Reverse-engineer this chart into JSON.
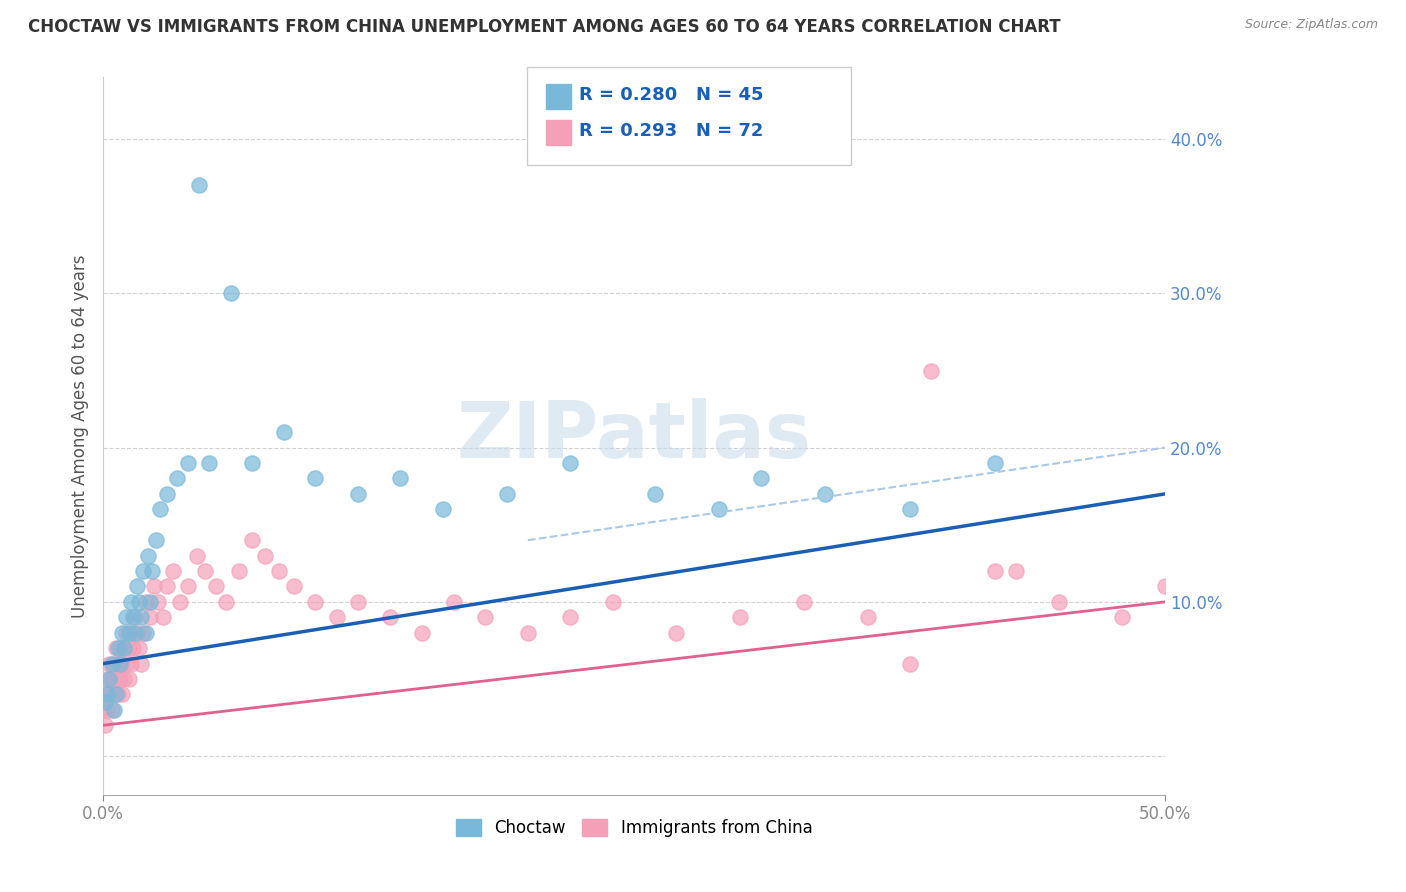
{
  "title": "CHOCTAW VS IMMIGRANTS FROM CHINA UNEMPLOYMENT AMONG AGES 60 TO 64 YEARS CORRELATION CHART",
  "source": "Source: ZipAtlas.com",
  "ylabel": "Unemployment Among Ages 60 to 64 years",
  "choctaw_label": "Choctaw",
  "china_label": "Immigrants from China",
  "legend_r1": "R = 0.280",
  "legend_n1": "N = 45",
  "legend_r2": "R = 0.293",
  "legend_n2": "N = 72",
  "choctaw_color": "#7ab8d9",
  "china_color": "#f4a0b8",
  "choctaw_trend_color": "#1a5fb4",
  "china_trend_color": "#e06090",
  "china_dashed_color": "#aac8e8",
  "watermark_color": "#ccdcec",
  "xlim": [
    0.0,
    0.5
  ],
  "ylim": [
    -0.025,
    0.44
  ],
  "choctaw_x": [
    0.001,
    0.002,
    0.003,
    0.004,
    0.005,
    0.006,
    0.007,
    0.008,
    0.009,
    0.01,
    0.011,
    0.012,
    0.013,
    0.014,
    0.015,
    0.016,
    0.017,
    0.018,
    0.019,
    0.02,
    0.021,
    0.022,
    0.023,
    0.025,
    0.027,
    0.03,
    0.035,
    0.04,
    0.045,
    0.05,
    0.06,
    0.07,
    0.085,
    0.1,
    0.12,
    0.14,
    0.16,
    0.19,
    0.22,
    0.26,
    0.29,
    0.31,
    0.34,
    0.38,
    0.42
  ],
  "choctaw_y": [
    0.035,
    0.04,
    0.05,
    0.06,
    0.03,
    0.04,
    0.07,
    0.06,
    0.08,
    0.07,
    0.09,
    0.08,
    0.1,
    0.09,
    0.08,
    0.11,
    0.1,
    0.09,
    0.12,
    0.08,
    0.13,
    0.1,
    0.12,
    0.14,
    0.16,
    0.17,
    0.18,
    0.19,
    0.37,
    0.19,
    0.3,
    0.19,
    0.21,
    0.18,
    0.17,
    0.18,
    0.16,
    0.17,
    0.19,
    0.17,
    0.16,
    0.18,
    0.17,
    0.16,
    0.19
  ],
  "china_x": [
    0.0,
    0.001,
    0.001,
    0.002,
    0.002,
    0.003,
    0.003,
    0.004,
    0.004,
    0.005,
    0.005,
    0.006,
    0.006,
    0.007,
    0.007,
    0.008,
    0.008,
    0.009,
    0.009,
    0.01,
    0.01,
    0.011,
    0.011,
    0.012,
    0.012,
    0.013,
    0.013,
    0.014,
    0.015,
    0.016,
    0.017,
    0.018,
    0.019,
    0.02,
    0.022,
    0.024,
    0.026,
    0.028,
    0.03,
    0.033,
    0.036,
    0.04,
    0.044,
    0.048,
    0.053,
    0.058,
    0.064,
    0.07,
    0.076,
    0.083,
    0.09,
    0.1,
    0.11,
    0.12,
    0.135,
    0.15,
    0.165,
    0.18,
    0.2,
    0.22,
    0.24,
    0.27,
    0.3,
    0.33,
    0.36,
    0.39,
    0.42,
    0.45,
    0.48,
    0.5,
    0.38,
    0.43
  ],
  "china_y": [
    0.03,
    0.04,
    0.02,
    0.05,
    0.03,
    0.04,
    0.06,
    0.05,
    0.03,
    0.04,
    0.06,
    0.05,
    0.07,
    0.06,
    0.04,
    0.05,
    0.07,
    0.06,
    0.04,
    0.05,
    0.07,
    0.06,
    0.08,
    0.07,
    0.05,
    0.06,
    0.08,
    0.07,
    0.09,
    0.08,
    0.07,
    0.06,
    0.08,
    0.1,
    0.09,
    0.11,
    0.1,
    0.09,
    0.11,
    0.12,
    0.1,
    0.11,
    0.13,
    0.12,
    0.11,
    0.1,
    0.12,
    0.14,
    0.13,
    0.12,
    0.11,
    0.1,
    0.09,
    0.1,
    0.09,
    0.08,
    0.1,
    0.09,
    0.08,
    0.09,
    0.1,
    0.08,
    0.09,
    0.1,
    0.09,
    0.25,
    0.12,
    0.1,
    0.09,
    0.11,
    0.06,
    0.12
  ]
}
